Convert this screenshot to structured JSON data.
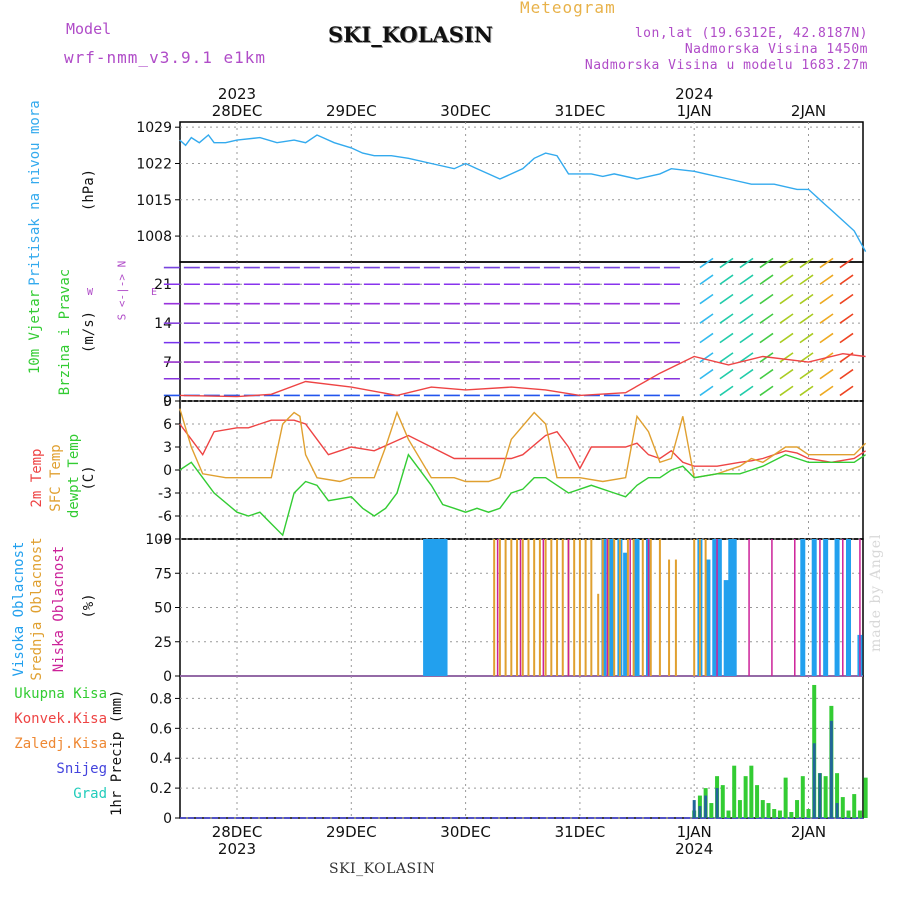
{
  "header": {
    "model_label": "Model",
    "model_value": "wrf-nmm_v3.9.1 e1km",
    "station": "SKI_KOLASIN",
    "title": "Meteogram",
    "location_lines": [
      "lon,lat (19.6312E, 42.8187N)",
      "Nadmorska Visina 1450m",
      "Nadmorska Visina u modelu 1683.27m"
    ]
  },
  "footer": {
    "station": "SKI_KOLASIN",
    "credit": "made by Angel"
  },
  "time_axis": {
    "ticks": [
      "28DEC",
      "29DEC",
      "30DEC",
      "31DEC",
      "1JAN",
      "2JAN"
    ],
    "top_years": [
      {
        "label": "2023",
        "tick": 0
      },
      {
        "label": "2024",
        "tick": 4
      }
    ],
    "bottom_years": [
      {
        "label": "2023",
        "tick": 0
      },
      {
        "label": "2024",
        "tick": 4
      }
    ]
  },
  "panel_labels": {
    "pressure": {
      "name": "Pritisak na nivou mora",
      "unit": "(hPa)"
    },
    "wind": {
      "name_line1": "10m Vjetar",
      "name_line2": "Brzina i Pravac",
      "unit": "(m/s)",
      "compass_ns": "S <-|-> N",
      "compass_w": "W",
      "compass_e": "E"
    },
    "temperature": {
      "l1": "2m Temp",
      "l2": "SFC Temp",
      "l3": "dewpt Temp",
      "unit": "(C)"
    },
    "clouds": {
      "l1": "Visoka Oblacnost",
      "l2": "Srednja Oblacnost",
      "l3": "Niska Oblacnost",
      "unit": "(%)"
    },
    "precip": {
      "legend": [
        "Ukupna Kisa",
        "Konvek.Kisa",
        "Zaledj.Kisa",
        "Snijeg",
        "Grad"
      ],
      "unit": "1hr Precip (mm)"
    }
  },
  "colors": {
    "pressure": "#33aaee",
    "temp2m": "#ee4444",
    "sfc": "#e0a030",
    "dewpt": "#33cc33",
    "cloud_high": "#22a0ee",
    "cloud_mid": "#e0a030",
    "cloud_low": "#cc2299",
    "precip_total": "#33cc33",
    "precip_conv": "#ee4444",
    "precip_frz": "#ee8833",
    "precip_snow": "#4444dd",
    "precip_hail": "#22ccbb",
    "wind_arrows": "#8833dd"
  },
  "chart_data": [
    {
      "type": "line",
      "title": "",
      "ylabel": "(hPa)",
      "ylim": [
        1003,
        1030
      ],
      "yticks": [
        1008,
        1015,
        1022,
        1029
      ],
      "x_days": [
        -0.5,
        5.5
      ],
      "series": [
        {
          "x": [
            -0.5,
            -0.45,
            -0.4,
            -0.33,
            -0.25,
            -0.2,
            -0.1,
            0,
            0.2,
            0.35,
            0.5,
            0.6,
            0.7,
            0.85,
            1.0,
            1.1,
            1.2,
            1.35,
            1.5,
            1.7,
            1.9,
            2.0,
            2.1,
            2.2,
            2.3,
            2.4,
            2.5,
            2.6,
            2.7,
            2.8,
            2.9,
            3.0,
            3.1,
            3.2,
            3.3,
            3.5,
            3.7,
            3.8,
            4.0,
            4.1,
            4.3,
            4.5,
            4.7,
            4.9,
            5.0,
            5.1,
            5.15,
            5.2,
            5.3,
            5.4,
            5.5
          ],
          "values": [
            1026.5,
            1025.5,
            1027,
            1026,
            1027.5,
            1026,
            1026,
            1026.5,
            1027,
            1026,
            1026.5,
            1026,
            1027.5,
            1026,
            1025,
            1024,
            1023.5,
            1023.5,
            1023,
            1022,
            1021,
            1022,
            1021,
            1020,
            1019,
            1020,
            1021,
            1023,
            1024,
            1023.5,
            1020,
            1020,
            1020,
            1019.5,
            1020,
            1019,
            1020,
            1021,
            1020.5,
            1020,
            1019,
            1018,
            1018,
            1017,
            1017,
            1015,
            1014,
            1013,
            1011,
            1009,
            1005
          ]
        }
      ]
    },
    {
      "type": "line",
      "title": "",
      "ylabel": "(m/s)",
      "ylim": [
        0,
        25
      ],
      "yticks": [
        0,
        7,
        14,
        21
      ],
      "x_days": [
        -0.5,
        5.5
      ],
      "series": [
        {
          "x": [
            -0.5,
            0,
            0.3,
            0.6,
            1.0,
            1.4,
            1.7,
            2.0,
            2.4,
            2.7,
            3.0,
            3.4,
            3.7,
            4.0,
            4.3,
            4.6,
            5.0,
            5.3,
            5.5
          ],
          "values": [
            1,
            0.8,
            1.2,
            3.5,
            2.5,
            1.0,
            2.5,
            2.0,
            2.5,
            2.0,
            1.0,
            1.5,
            5,
            8,
            6.5,
            8,
            7,
            8.5,
            8
          ]
        }
      ]
    },
    {
      "type": "line",
      "title": "",
      "ylabel": "(C)",
      "ylim": [
        -9,
        9
      ],
      "yticks": [
        -9,
        -6,
        -3,
        0,
        3,
        6,
        9
      ],
      "x_days": [
        -0.5,
        5.5
      ],
      "series": [
        {
          "x": [
            -0.5,
            -0.4,
            -0.3,
            -0.2,
            0,
            0.1,
            0.3,
            0.5,
            0.6,
            0.7,
            0.8,
            0.9,
            1.0,
            1.2,
            1.5,
            1.7,
            1.9,
            2.0,
            2.2,
            2.4,
            2.5,
            2.7,
            2.8,
            2.9,
            3.0,
            3.1,
            3.2,
            3.4,
            3.5,
            3.6,
            3.7,
            3.8,
            3.9,
            4.0,
            4.2,
            4.4,
            4.5,
            4.6,
            4.8,
            4.9,
            5.0,
            5.2,
            5.4,
            5.5
          ],
          "values": [
            6,
            4,
            2,
            5,
            5.5,
            5.5,
            6.5,
            6.5,
            6,
            4,
            2,
            2.5,
            3,
            2.5,
            4.5,
            3,
            1.5,
            1.5,
            1.5,
            1.5,
            2,
            4.5,
            5,
            3,
            0.2,
            3,
            3,
            3,
            3.5,
            2,
            1.5,
            2.5,
            1,
            0.5,
            0.5,
            1,
            1.2,
            1.5,
            2.5,
            2.2,
            1.5,
            1,
            1.5,
            2.5
          ]
        },
        {
          "x": [
            -0.5,
            -0.4,
            -0.3,
            -0.1,
            0.2,
            0.3,
            0.4,
            0.5,
            0.55,
            0.6,
            0.7,
            0.9,
            1.0,
            1.2,
            1.3,
            1.4,
            1.5,
            1.7,
            1.9,
            2.0,
            2.2,
            2.3,
            2.4,
            2.6,
            2.7,
            2.8,
            2.9,
            3.0,
            3.2,
            3.4,
            3.5,
            3.6,
            3.7,
            3.8,
            3.9,
            4.0,
            4.2,
            4.4,
            4.5,
            4.6,
            4.8,
            4.9,
            5.0,
            5.2,
            5.4,
            5.5
          ],
          "values": [
            8,
            3,
            -0.5,
            -1,
            -1,
            -1,
            6,
            7.5,
            7,
            2,
            -1,
            -1.5,
            -1,
            -1,
            3,
            7.5,
            4,
            -1,
            -1,
            -1.5,
            -1.5,
            -1,
            4,
            7.5,
            6,
            -1,
            -1,
            -1,
            -1.5,
            -1,
            7,
            5,
            1,
            1.5,
            7,
            -1,
            -0.5,
            0.5,
            1.5,
            1,
            3,
            3,
            2,
            2,
            2,
            3.5
          ]
        },
        {
          "x": [
            -0.5,
            -0.4,
            -0.3,
            -0.2,
            0,
            0.1,
            0.2,
            0.3,
            0.4,
            0.5,
            0.6,
            0.7,
            0.8,
            1.0,
            1.1,
            1.2,
            1.3,
            1.4,
            1.5,
            1.7,
            1.8,
            1.9,
            2.0,
            2.1,
            2.2,
            2.3,
            2.4,
            2.5,
            2.6,
            2.7,
            2.8,
            2.9,
            3.0,
            3.1,
            3.3,
            3.4,
            3.5,
            3.6,
            3.7,
            3.8,
            3.9,
            4.0,
            4.2,
            4.4,
            4.5,
            4.6,
            4.8,
            4.9,
            5.0,
            5.2,
            5.4,
            5.5
          ],
          "values": [
            0,
            1,
            -1,
            -3,
            -5.5,
            -6,
            -5.5,
            -7,
            -8.5,
            -3,
            -1.5,
            -2,
            -4,
            -3.5,
            -5,
            -6,
            -5,
            -3,
            2,
            -2,
            -4.5,
            -5,
            -5.5,
            -5,
            -5.5,
            -5,
            -3,
            -2.5,
            -1,
            -1,
            -2,
            -3,
            -2.5,
            -2,
            -3,
            -3.5,
            -2,
            -1,
            -1,
            0,
            0.5,
            -1,
            -0.5,
            -0.5,
            0,
            0.5,
            2,
            1.5,
            1,
            1,
            1,
            2
          ]
        }
      ]
    },
    {
      "type": "bar",
      "title": "",
      "ylabel": "(%)",
      "ylim": [
        0,
        100
      ],
      "yticks": [
        0,
        25,
        50,
        75,
        100
      ],
      "x_days": [
        -0.5,
        5.5
      ],
      "series": [
        {
          "x": [
            1.65,
            1.68,
            1.72,
            1.75,
            1.79,
            1.82,
            3.21,
            3.28,
            3.35,
            3.4,
            3.5,
            3.6,
            4.05,
            4.12,
            4.18,
            4.22,
            4.28,
            4.32,
            4.35,
            4.95,
            5.05,
            5.15,
            5.25,
            5.35,
            5.45
          ],
          "values": [
            100,
            100,
            100,
            100,
            100,
            100,
            100,
            100,
            100,
            90,
            100,
            100,
            100,
            85,
            100,
            100,
            70,
            100,
            100,
            100,
            100,
            100,
            100,
            100,
            30
          ]
        },
        {
          "x": [
            2.25,
            2.3,
            2.35,
            2.4,
            2.45,
            2.5,
            2.55,
            2.6,
            2.65,
            2.7,
            2.75,
            2.8,
            2.85,
            2.9,
            2.95,
            3.0,
            3.05,
            3.1,
            3.16,
            3.2,
            3.25,
            3.3,
            3.35,
            3.42,
            3.47,
            3.55,
            3.62,
            3.7,
            3.78,
            3.84,
            4.0,
            4.05,
            4.1
          ],
          "values": [
            100,
            100,
            100,
            100,
            100,
            100,
            100,
            100,
            100,
            100,
            100,
            100,
            100,
            100,
            100,
            100,
            100,
            100,
            60,
            100,
            100,
            100,
            100,
            100,
            100,
            100,
            100,
            100,
            85,
            85,
            100,
            100,
            100
          ]
        },
        {
          "x": [
            2.28,
            2.48,
            2.68,
            2.9,
            3.24,
            3.44,
            3.6,
            4.2,
            4.48,
            4.68,
            4.88,
            5.1,
            5.3,
            5.45
          ],
          "values": [
            100,
            100,
            100,
            100,
            100,
            100,
            100,
            100,
            100,
            100,
            100,
            100,
            100,
            100
          ]
        }
      ]
    },
    {
      "type": "bar",
      "title": "",
      "ylabel": "1hr Precip (mm)",
      "ylim": [
        0,
        0.95
      ],
      "yticks": [
        0,
        0.2,
        0.4,
        0.6,
        0.8
      ],
      "x_days": [
        -0.5,
        5.5
      ],
      "series": [
        {
          "x": [
            4.0,
            4.05,
            4.1,
            4.15,
            4.2,
            4.25,
            4.3,
            4.35,
            4.4,
            4.45,
            4.5,
            4.55,
            4.6,
            4.65,
            4.7,
            4.75,
            4.8,
            4.85,
            4.9,
            4.95,
            5.0,
            5.05,
            5.1,
            5.15,
            5.2,
            5.25,
            5.3,
            5.35,
            5.4,
            5.45,
            5.5
          ],
          "values": [
            0.05,
            0.15,
            0.2,
            0.1,
            0.28,
            0.22,
            0.05,
            0.35,
            0.12,
            0.28,
            0.35,
            0.22,
            0.12,
            0.1,
            0.06,
            0.05,
            0.27,
            0.04,
            0.12,
            0.28,
            0.06,
            0.89,
            0.3,
            0.28,
            0.75,
            0.3,
            0.14,
            0.05,
            0.16,
            0.05,
            0.27
          ]
        },
        {
          "x": [
            4.0,
            4.05,
            4.1,
            4.2,
            5.05,
            5.1,
            5.2,
            5.25
          ],
          "values": [
            0.12,
            0.08,
            0.15,
            0.2,
            0.5,
            0.3,
            0.65,
            0.1
          ]
        }
      ]
    }
  ]
}
